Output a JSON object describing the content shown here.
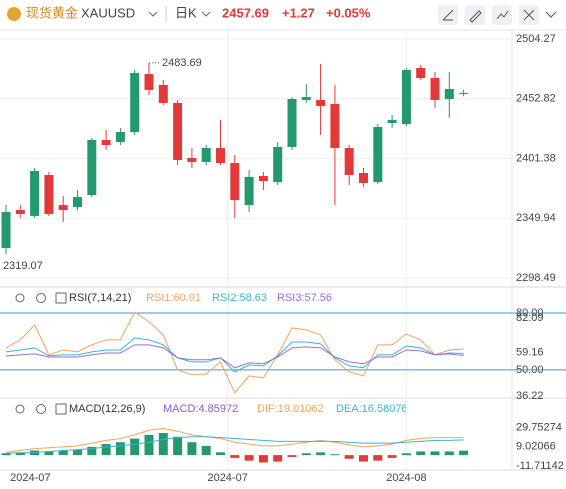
{
  "header": {
    "name": "现货黄金",
    "symbol": "XAUUSD",
    "period": "日K",
    "price": "2457.69",
    "change": "+1.27",
    "change_pct": "+0.05%"
  },
  "chart_data": [
    {
      "type": "candlestick",
      "candles": {
        "open": [
          2324.3,
          2357.0,
          2351.9,
          2387.2,
          2361.3,
          2359.6,
          2369.9,
          2417.3,
          2415.6,
          2424.2,
          2474.1,
          2464.7,
          2449.2,
          2401.8,
          2398.4,
          2410.4,
          2397.5,
          2361.3,
          2386.3,
          2381.1,
          2411.3,
          2451.8,
          2451.8,
          2448.3,
          2410.4,
          2388.9,
          2381.1,
          2431.9,
          2431.1,
          2479.3,
          2470.7,
          2452.6,
          2456.9
        ],
        "high": [
          2361.3,
          2361.3,
          2393.2,
          2389.8,
          2369.1,
          2374.3,
          2419.0,
          2425.9,
          2427.6,
          2477.6,
          2483.69,
          2469.0,
          2451.8,
          2410.4,
          2413.0,
          2434.5,
          2404.4,
          2391.5,
          2389.8,
          2415.6,
          2454.3,
          2465.5,
          2482.8,
          2464.7,
          2413.0,
          2393.2,
          2431.1,
          2438.8,
          2479.3,
          2482.0,
          2475.9,
          2475.9,
          2460.5
        ],
        "low": [
          2319.07,
          2350.2,
          2350.2,
          2351.9,
          2346.7,
          2357.0,
          2368.2,
          2408.7,
          2413.0,
          2421.6,
          2456.1,
          2447.4,
          2395.8,
          2393.2,
          2395.8,
          2395.8,
          2350.2,
          2355.3,
          2374.3,
          2378.6,
          2408.7,
          2449.2,
          2421.6,
          2361.3,
          2378.6,
          2376.8,
          2379.4,
          2427.6,
          2429.4,
          2469.0,
          2444.9,
          2436.3,
          2455.0
        ],
        "close": [
          2355.3,
          2353.6,
          2390.6,
          2353.6,
          2357.0,
          2368.2,
          2417.3,
          2413.0,
          2424.2,
          2475.0,
          2460.4,
          2449.2,
          2400.1,
          2398.4,
          2410.4,
          2397.5,
          2365.6,
          2385.5,
          2382.0,
          2411.3,
          2452.6,
          2454.3,
          2446.6,
          2410.4,
          2387.2,
          2380.3,
          2428.5,
          2434.5,
          2477.6,
          2470.7,
          2451.8,
          2461.2,
          2457.69
        ]
      },
      "up_color": "#229a6e",
      "down_color": "#e23a3a",
      "ylim": [
        2298.49,
        2504.27
      ],
      "yticks": [
        2504.27,
        2452.82,
        2401.38,
        2349.94,
        2298.49
      ],
      "high_label": 2483.69,
      "low_label": 2319.07,
      "x_labels": [
        "2024-07",
        "2024-07",
        "2024-08"
      ],
      "grid": true
    },
    {
      "type": "line",
      "title": "RSI(7,14,21)",
      "series": [
        {
          "name": "RSI1:60.91",
          "color": "#f5a35c",
          "values": [
            61.6,
            65.8,
            73.7,
            57.9,
            60.5,
            59.5,
            63.2,
            65.8,
            65.8,
            80.5,
            75.3,
            68.4,
            50.0,
            47.4,
            47.9,
            54.2,
            37.9,
            46.8,
            45.8,
            57.9,
            72.1,
            71.1,
            68.4,
            55.3,
            48.9,
            46.8,
            63.2,
            63.2,
            68.9,
            65.8,
            57.9,
            60.5,
            60.91
          ]
        },
        {
          "name": "RSI2:58.63",
          "color": "#3bb4d6",
          "values": [
            59.5,
            60.5,
            61.6,
            57.4,
            57.9,
            57.9,
            59.5,
            60.5,
            60.5,
            66.8,
            65.8,
            63.2,
            56.3,
            54.2,
            54.2,
            56.3,
            48.9,
            52.6,
            52.1,
            57.4,
            64.7,
            64.7,
            63.7,
            56.3,
            52.1,
            51.1,
            57.9,
            57.9,
            62.6,
            61.6,
            57.9,
            58.9,
            58.63
          ]
        },
        {
          "name": "RSI3:57.56",
          "color": "#9c6fd1",
          "values": [
            57.4,
            57.9,
            58.4,
            56.8,
            56.8,
            56.8,
            57.9,
            58.9,
            58.9,
            63.2,
            63.2,
            61.6,
            56.3,
            55.3,
            55.3,
            56.3,
            51.1,
            53.7,
            53.2,
            56.8,
            61.6,
            62.1,
            61.6,
            56.8,
            54.2,
            53.2,
            56.8,
            56.8,
            60.5,
            60.0,
            57.9,
            58.4,
            57.56
          ]
        }
      ],
      "ylim": [
        36.22,
        82.09
      ],
      "yticks": [
        82.09,
        {
          "value": 80,
          "label": "80.00"
        },
        59.16,
        {
          "value": 50,
          "label": "50.00"
        },
        36.22
      ],
      "hlines": [
        80,
        50
      ],
      "hline_color": "#4a90d9"
    },
    {
      "type": "macd",
      "title": "MACD(12,26,9)",
      "histogram": {
        "name": "MACD:4.85972",
        "color": "#8a5cc9",
        "values": [
          2,
          3,
          5,
          4,
          5,
          6,
          9,
          12,
          14,
          18,
          22,
          24,
          20,
          14,
          10,
          3,
          -3,
          -6,
          -8,
          -7,
          -2,
          2,
          3,
          1,
          -4,
          -7,
          -6,
          -3,
          2,
          4,
          4,
          4,
          4.85972
        ]
      },
      "series": [
        {
          "name": "DIF:19.01062",
          "color": "#f5a35c",
          "values": [
            3,
            5,
            7,
            8,
            9,
            10,
            13,
            16,
            18,
            22,
            27,
            29,
            26,
            22,
            20,
            18,
            14,
            12,
            10,
            10,
            12,
            14,
            16,
            14,
            11,
            9,
            10,
            12,
            16,
            18,
            19,
            19,
            19.01062
          ]
        },
        {
          "name": "DEA:16.58076",
          "color": "#3bb4d6",
          "values": [
            2,
            2.5,
            3,
            4,
            5,
            6,
            7,
            9,
            10,
            12,
            14,
            17,
            19,
            20,
            20,
            19,
            18,
            17,
            16,
            15,
            15,
            15,
            15,
            15,
            14,
            13,
            13,
            13,
            14,
            15,
            16,
            16,
            16.58076
          ]
        }
      ],
      "up_color": "#229a6e",
      "down_color": "#e23a3a",
      "ylim": [
        -14,
        36
      ],
      "yticks": [
        29.75274,
        9.02066,
        -11.71142
      ]
    }
  ]
}
